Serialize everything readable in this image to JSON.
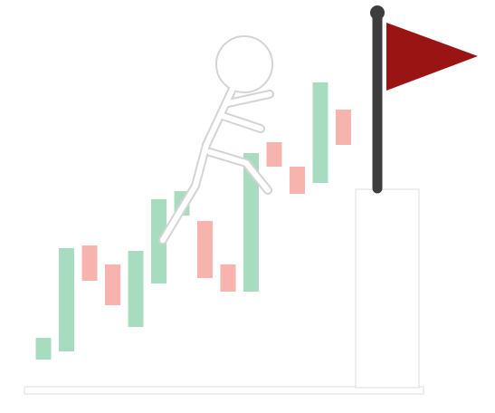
{
  "colors": {
    "background": "#ffffff",
    "bullish_candle": "#a8dcc0",
    "bearish_candle": "#f7b4ae",
    "flag_fabric": "#9a1414",
    "flag_pole": "#3d3d3d",
    "stick_figure": "#ececec",
    "stick_figure_stroke": "#d9d9d9",
    "platform_fill": "#ffffff",
    "platform_stroke": "#e2e2e2"
  },
  "icons": {
    "figure": "stick-figure-climbing-icon",
    "goal": "red-flag-icon"
  },
  "chart_data": {
    "type": "candlestick",
    "title": "",
    "xlabel": "",
    "ylabel": "",
    "grid": false,
    "legend": "none",
    "ylim": [
      0,
      100
    ],
    "candles": [
      {
        "direction": "up",
        "open": 5,
        "close": 13
      },
      {
        "direction": "up",
        "open": 8,
        "close": 46
      },
      {
        "direction": "down",
        "open": 47,
        "close": 34
      },
      {
        "direction": "down",
        "open": 40,
        "close": 25
      },
      {
        "direction": "up",
        "open": 17,
        "close": 45
      },
      {
        "direction": "up",
        "open": 33,
        "close": 64
      },
      {
        "direction": "up",
        "open": 58,
        "close": 67
      },
      {
        "direction": "down",
        "open": 56,
        "close": 35
      },
      {
        "direction": "down",
        "open": 40,
        "close": 30
      },
      {
        "direction": "up",
        "open": 30,
        "close": 81
      },
      {
        "direction": "down",
        "open": 85,
        "close": 76
      },
      {
        "direction": "down",
        "open": 76,
        "close": 66
      },
      {
        "direction": "up",
        "open": 70,
        "close": 107
      },
      {
        "direction": "down",
        "open": 97,
        "close": 84
      }
    ]
  }
}
